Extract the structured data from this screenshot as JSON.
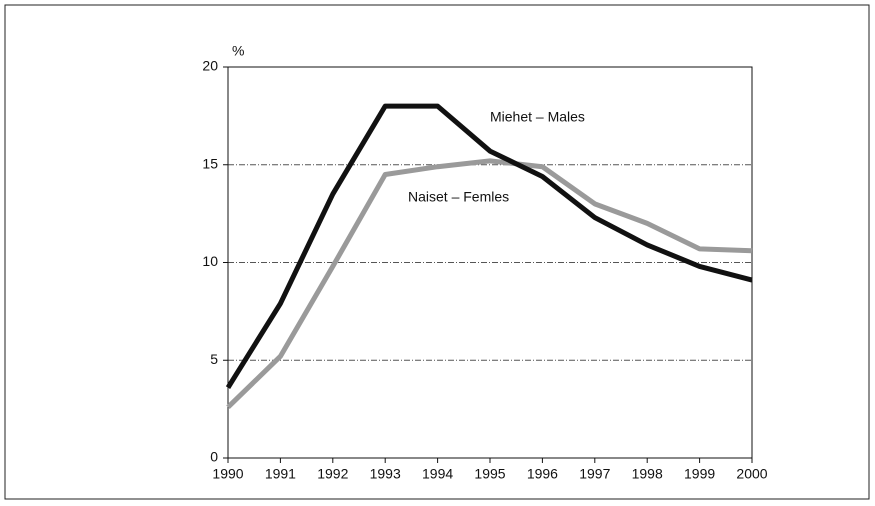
{
  "chart_data": {
    "type": "line",
    "y_unit_label": "%",
    "x": [
      1990,
      1991,
      1992,
      1993,
      1994,
      1995,
      1996,
      1997,
      1998,
      1999,
      2000
    ],
    "series": [
      {
        "name": "Miehet – Males",
        "color": "#111111",
        "values": [
          3.6,
          7.9,
          13.5,
          18.0,
          18.0,
          15.7,
          14.4,
          12.3,
          10.9,
          9.8,
          9.1
        ]
      },
      {
        "name": "Naiset – Femles",
        "color": "#9a9a9a",
        "values": [
          2.6,
          5.2,
          9.8,
          14.5,
          14.9,
          15.2,
          14.9,
          13.0,
          12.0,
          10.7,
          10.6
        ]
      }
    ],
    "xlim": [
      1990,
      2000
    ],
    "xticks": [
      1990,
      1991,
      1992,
      1993,
      1994,
      1995,
      1996,
      1997,
      1998,
      1999,
      2000
    ],
    "ylim": [
      0,
      20
    ],
    "yticks": [
      0,
      5,
      10,
      15,
      20
    ],
    "grid": true
  }
}
